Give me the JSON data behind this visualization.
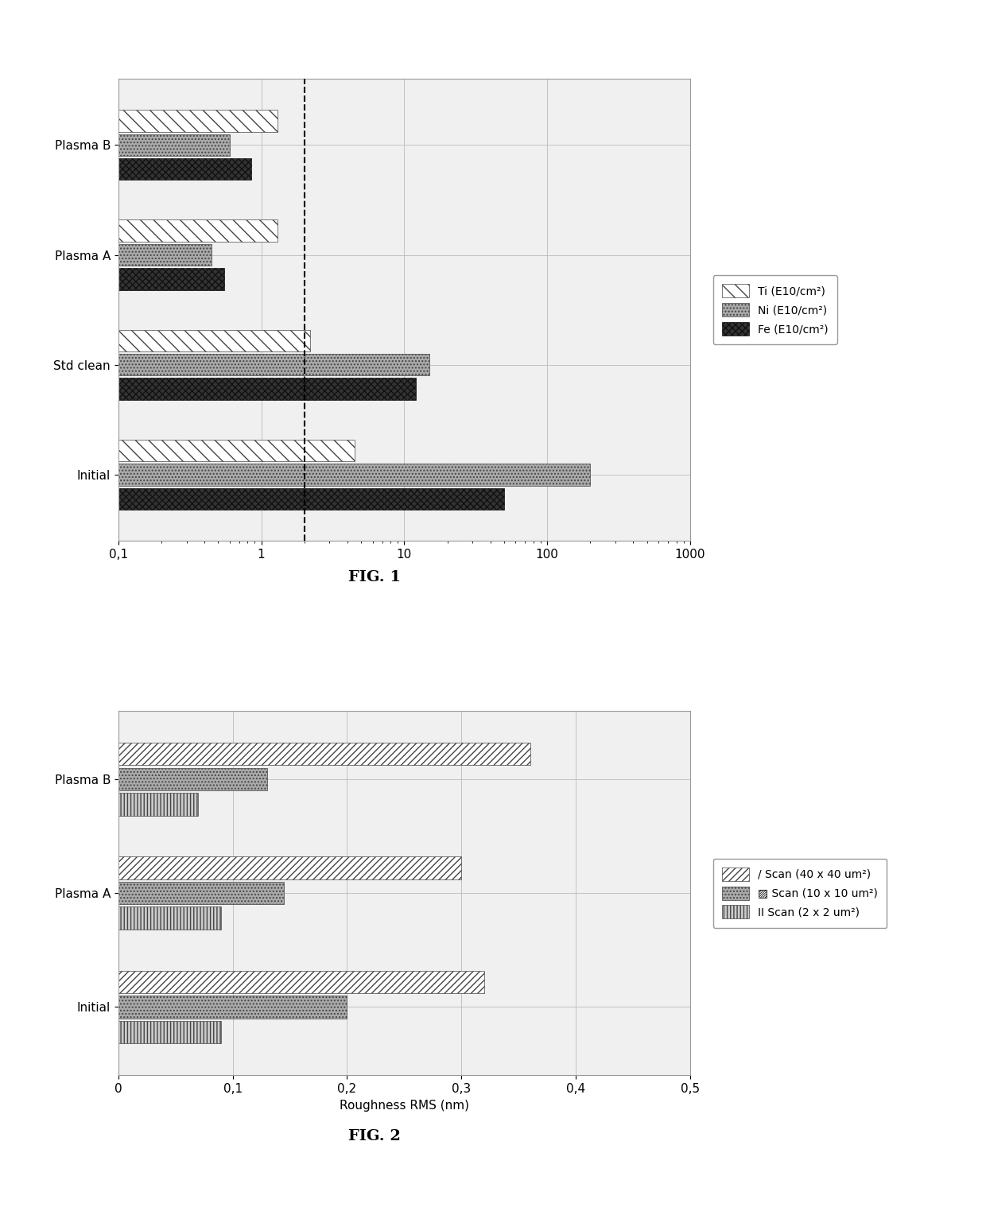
{
  "fig1": {
    "categories": [
      "Initial",
      "Std clean",
      "Plasma A",
      "Plasma B"
    ],
    "series": [
      {
        "label": "Ti (E10/cm²)",
        "values": [
          4.5,
          2.2,
          1.3,
          1.3
        ],
        "hatch": "\\\\",
        "facecolor": "white",
        "edgecolor": "#444444"
      },
      {
        "label": "Ni (E10/cm²)",
        "values": [
          200.0,
          15.0,
          0.45,
          0.6
        ],
        "hatch": "....",
        "facecolor": "#aaaaaa",
        "edgecolor": "#444444"
      },
      {
        "label": "Fe (E10/cm²)",
        "values": [
          50.0,
          12.0,
          0.55,
          0.85
        ],
        "hatch": "xxxx",
        "facecolor": "#333333",
        "edgecolor": "#111111"
      }
    ],
    "xlim_log": [
      0.1,
      1000
    ],
    "xticks": [
      0.1,
      1,
      10,
      100,
      1000
    ],
    "xticklabels": [
      "0,1",
      "1",
      "10",
      "100",
      "1000"
    ],
    "vline": 2.0
  },
  "fig2": {
    "categories": [
      "Initial",
      "Plasma A",
      "Plasma B"
    ],
    "series": [
      {
        "label": "/ Scan (40 x 40 um²)",
        "values": [
          0.32,
          0.3,
          0.36
        ],
        "hatch": "////",
        "facecolor": "white",
        "edgecolor": "#444444"
      },
      {
        "label": "▨ Scan (10 x 10 um²)",
        "values": [
          0.2,
          0.145,
          0.13
        ],
        "hatch": "....",
        "facecolor": "#aaaaaa",
        "edgecolor": "#444444"
      },
      {
        "label": "II Scan (2 x 2 um²)",
        "values": [
          0.09,
          0.09,
          0.07
        ],
        "hatch": "||||",
        "facecolor": "#cccccc",
        "edgecolor": "#444444"
      }
    ],
    "xlim": [
      0,
      0.5
    ],
    "xticks": [
      0,
      0.1,
      0.2,
      0.3,
      0.4,
      0.5
    ],
    "xticklabels": [
      "0",
      "0,1",
      "0,2",
      "0,3",
      "0,4",
      "0,5"
    ],
    "xlabel": "Roughness RMS (nm)"
  },
  "bg_color": "#f0f0f0",
  "bar_height": 0.22,
  "fontsize": 11,
  "fig1_label": "FIG. 1",
  "fig2_label": "FIG. 2"
}
